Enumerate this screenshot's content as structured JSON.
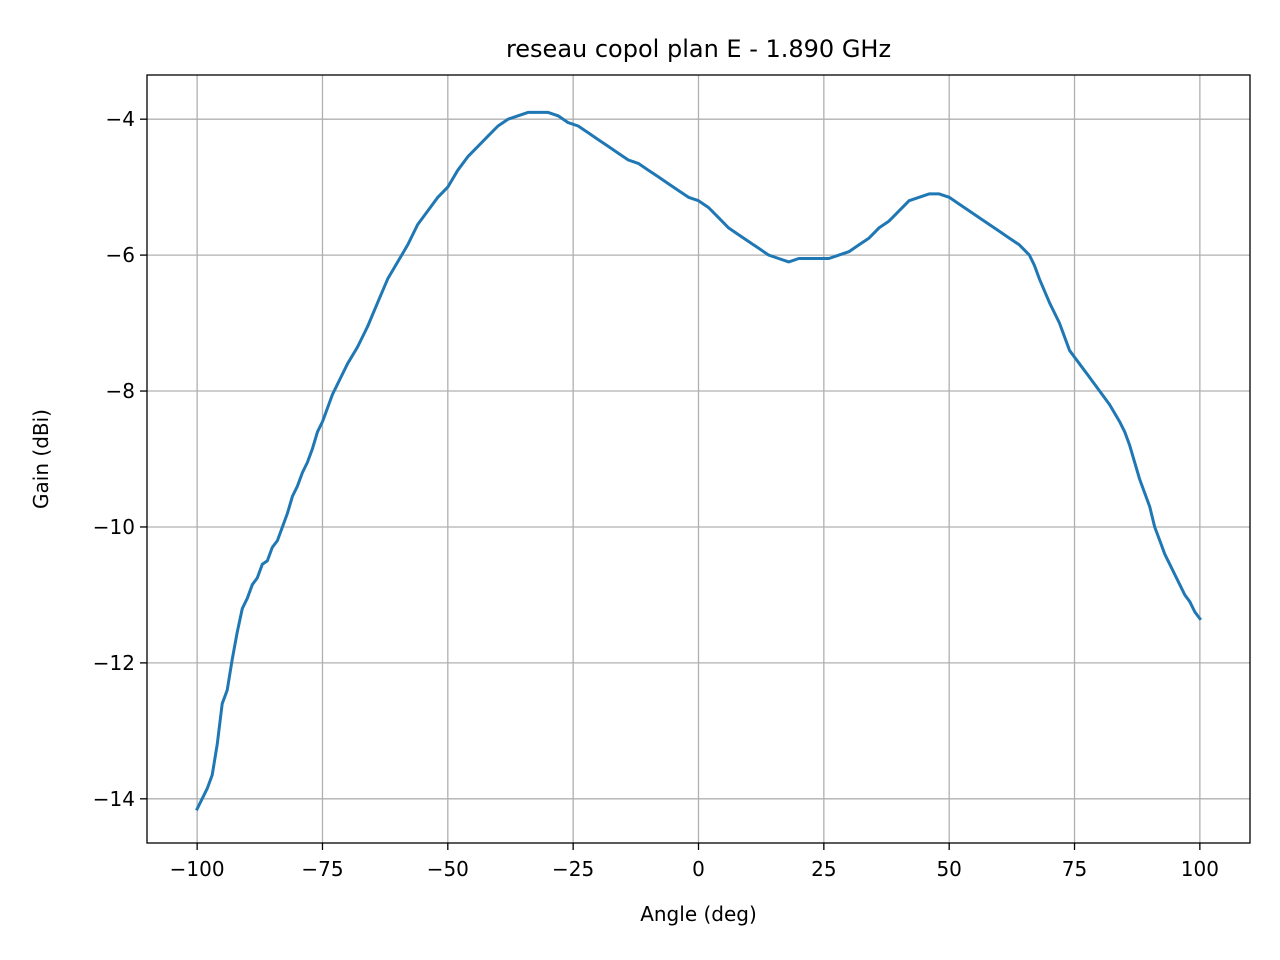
{
  "chart_data": {
    "type": "line",
    "title": "reseau copol plan E - 1.890 GHz",
    "xlabel": "Angle (deg)",
    "ylabel": "Gain (dBi)",
    "xlim": [
      -110,
      110
    ],
    "ylim": [
      -14.65,
      -3.35
    ],
    "xticks": [
      -100,
      -75,
      -50,
      -25,
      0,
      25,
      50,
      75,
      100
    ],
    "xtick_labels": [
      "−100",
      "−75",
      "−50",
      "−25",
      "0",
      "25",
      "50",
      "75",
      "100"
    ],
    "yticks": [
      -14,
      -12,
      -10,
      -8,
      -6,
      -4
    ],
    "ytick_labels": [
      "−14",
      "−12",
      "−10",
      "−8",
      "−6",
      "−4"
    ],
    "grid": true,
    "line_color": "#1f77b4",
    "grid_color": "#b0b0b0",
    "series": [
      {
        "x": [
          -100,
          -98,
          -97,
          -96,
          -95,
          -94,
          -93,
          -92,
          -91,
          -90,
          -89,
          -88,
          -87,
          -86,
          -85,
          -84,
          -83,
          -82,
          -81,
          -80,
          -79,
          -78,
          -77,
          -76,
          -75,
          -74,
          -73,
          -72,
          -71,
          -70,
          -68,
          -66,
          -64,
          -62,
          -60,
          -58,
          -56,
          -54,
          -52,
          -50,
          -48,
          -46,
          -44,
          -42,
          -40,
          -38,
          -36,
          -34,
          -32,
          -30,
          -28,
          -26,
          -24,
          -22,
          -20,
          -18,
          -16,
          -14,
          -12,
          -10,
          -8,
          -6,
          -4,
          -2,
          0,
          2,
          4,
          6,
          8,
          10,
          12,
          14,
          16,
          18,
          20,
          22,
          24,
          26,
          28,
          30,
          32,
          34,
          36,
          38,
          40,
          42,
          44,
          46,
          48,
          50,
          52,
          54,
          56,
          58,
          60,
          62,
          64,
          66,
          67,
          68,
          70,
          72,
          74,
          75,
          76,
          78,
          80,
          82,
          84,
          85,
          86,
          88,
          89,
          90,
          91,
          92,
          93,
          94,
          95,
          96,
          97,
          98,
          99,
          100
        ],
        "y": [
          -14.15,
          -13.85,
          -13.65,
          -13.2,
          -12.6,
          -12.4,
          -11.95,
          -11.55,
          -11.2,
          -11.05,
          -10.85,
          -10.75,
          -10.55,
          -10.5,
          -10.3,
          -10.2,
          -10.0,
          -9.8,
          -9.55,
          -9.4,
          -9.2,
          -9.05,
          -8.85,
          -8.6,
          -8.45,
          -8.25,
          -8.05,
          -7.9,
          -7.75,
          -7.6,
          -7.35,
          -7.05,
          -6.7,
          -6.35,
          -6.1,
          -5.85,
          -5.55,
          -5.35,
          -5.15,
          -5.0,
          -4.75,
          -4.55,
          -4.4,
          -4.25,
          -4.1,
          -4.0,
          -3.95,
          -3.9,
          -3.9,
          -3.9,
          -3.95,
          -4.05,
          -4.1,
          -4.2,
          -4.3,
          -4.4,
          -4.5,
          -4.6,
          -4.65,
          -4.75,
          -4.85,
          -4.95,
          -5.05,
          -5.15,
          -5.2,
          -5.3,
          -5.45,
          -5.6,
          -5.7,
          -5.8,
          -5.9,
          -6.0,
          -6.05,
          -6.1,
          -6.05,
          -6.05,
          -6.05,
          -6.05,
          -6.0,
          -5.95,
          -5.85,
          -5.75,
          -5.6,
          -5.5,
          -5.35,
          -5.2,
          -5.15,
          -5.1,
          -5.1,
          -5.15,
          -5.25,
          -5.35,
          -5.45,
          -5.55,
          -5.65,
          -5.75,
          -5.85,
          -6.0,
          -6.15,
          -6.35,
          -6.7,
          -7.0,
          -7.4,
          -7.5,
          -7.6,
          -7.8,
          -8.0,
          -8.2,
          -8.45,
          -8.6,
          -8.8,
          -9.3,
          -9.5,
          -9.7,
          -10.0,
          -10.2,
          -10.4,
          -10.55,
          -10.7,
          -10.85,
          -11.0,
          -11.1,
          -11.25,
          -11.35
        ]
      }
    ]
  }
}
